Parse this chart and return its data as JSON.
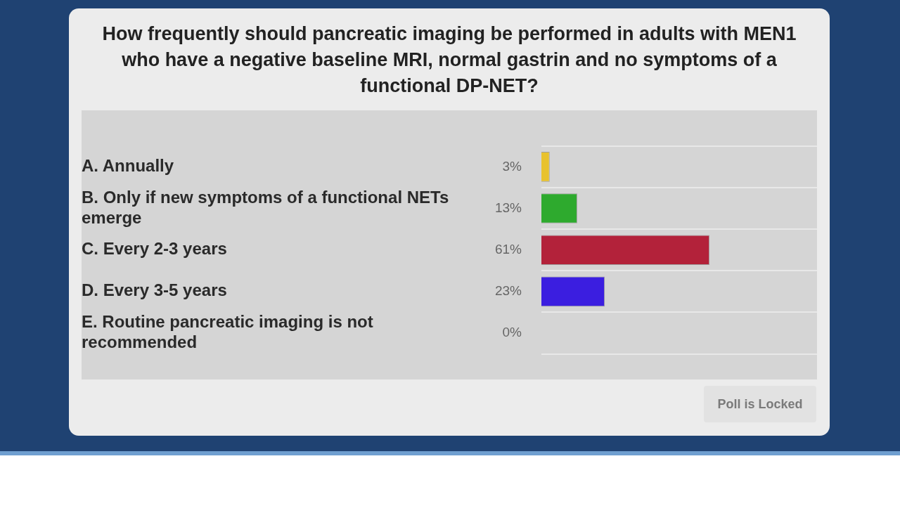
{
  "chart_data": {
    "type": "bar",
    "orientation": "horizontal",
    "title": "How frequently should pancreatic imaging be performed in adults with MEN1 who have a negative baseline MRI, normal gastrin and no symptoms of a functional DP-NET?",
    "categories": [
      "A. Annually",
      "B. Only if new symptoms of a functional NETs emerge",
      "C. Every 2-3 years",
      "D. Every 3-5 years",
      "E. Routine pancreatic imaging is not recommended"
    ],
    "values": [
      3,
      13,
      61,
      23,
      0
    ],
    "colors": [
      "#e8c22e",
      "#2eaa2e",
      "#b3223a",
      "#3b1ee0",
      "#6a1e9a"
    ],
    "value_labels": [
      "3%",
      "13%",
      "61%",
      "23%",
      "0%"
    ],
    "xlim": [
      0,
      100
    ],
    "tick_labels": "y",
    "grid": "y",
    "annotations": [
      "Poll is Locked"
    ]
  }
}
